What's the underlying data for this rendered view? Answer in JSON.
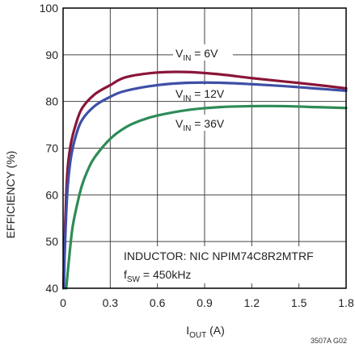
{
  "chart_data": {
    "type": "line",
    "xlabel": {
      "main": "I",
      "sub": "OUT",
      "tail": " (A)"
    },
    "ylabel": "EFFICIENCY (%)",
    "xlim": [
      0,
      1.8
    ],
    "ylim": [
      40,
      100
    ],
    "xticks": [
      "0",
      "0.3",
      "0.6",
      "0.9",
      "1.2",
      "1.5",
      "1.8"
    ],
    "yticks": [
      "40",
      "50",
      "60",
      "70",
      "80",
      "90",
      "100"
    ],
    "grid": true,
    "series": [
      {
        "name": {
          "main": "V",
          "sub": "IN",
          "tail": " = 6V"
        },
        "color": "#8a1538",
        "x": [
          0.0025,
          0.01,
          0.02,
          0.03,
          0.05,
          0.08,
          0.12,
          0.2,
          0.3,
          0.4,
          0.6,
          0.8,
          1.0,
          1.2,
          1.4,
          1.6,
          1.8
        ],
        "y": [
          40,
          50,
          60,
          66,
          71,
          75,
          78.5,
          81.5,
          83.5,
          85.2,
          86.2,
          86.3,
          85.8,
          85.0,
          84.3,
          83.6,
          82.8
        ]
      },
      {
        "name": {
          "main": "V",
          "sub": "IN",
          "tail": " = 12V"
        },
        "color": "#3d4fa6",
        "x": [
          0.005,
          0.01,
          0.02,
          0.03,
          0.05,
          0.08,
          0.12,
          0.2,
          0.3,
          0.4,
          0.6,
          0.8,
          1.0,
          1.2,
          1.4,
          1.6,
          1.8
        ],
        "y": [
          40,
          47,
          56,
          62,
          68,
          72.5,
          76,
          79,
          81,
          82.3,
          83.5,
          84.0,
          84.0,
          83.7,
          83.3,
          82.8,
          82.3
        ]
      },
      {
        "name": {
          "main": "V",
          "sub": "IN",
          "tail": " = 36V"
        },
        "color": "#2e8b57",
        "x": [
          0.02,
          0.04,
          0.06,
          0.09,
          0.12,
          0.16,
          0.2,
          0.3,
          0.4,
          0.5,
          0.6,
          0.8,
          1.0,
          1.2,
          1.4,
          1.6,
          1.8
        ],
        "y": [
          40,
          47,
          53,
          58,
          62,
          65.5,
          68,
          72,
          74.5,
          76,
          77,
          78.2,
          78.8,
          79.0,
          79.0,
          78.8,
          78.6
        ]
      }
    ],
    "annotation": {
      "line1": "INDUCTOR: NIC NPIM74C8R2MTRF",
      "line2": {
        "main": "f",
        "sub": "SW",
        "tail": " = 450kHz"
      }
    },
    "figure_id": "3507A G02"
  }
}
